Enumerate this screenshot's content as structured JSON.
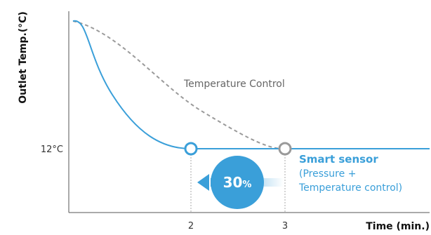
{
  "chart_data": {
    "type": "line",
    "ylabel": "Outlet Temp.(°C)",
    "xlabel": "Time (min.)",
    "x_ticks": [
      {
        "value": 2,
        "label": "2"
      },
      {
        "value": 3,
        "label": "3"
      }
    ],
    "y_ticks": [
      {
        "value": 12,
        "label": "12°C"
      }
    ],
    "xlim": [
      0,
      4.5
    ],
    "series": [
      {
        "name": "Temperature Control",
        "style": "dashed",
        "color": "#9a9a9a",
        "points": [
          [
            0,
            40
          ],
          [
            0.3,
            37
          ],
          [
            1,
            28
          ],
          [
            2,
            19
          ],
          [
            2.6,
            14
          ],
          [
            3,
            12
          ]
        ]
      },
      {
        "name": "Smart sensor",
        "style": "solid",
        "color": "#3a9fd9",
        "points": [
          [
            0,
            40
          ],
          [
            0.15,
            36
          ],
          [
            0.5,
            24
          ],
          [
            1,
            16
          ],
          [
            1.5,
            12.8
          ],
          [
            2,
            12
          ],
          [
            3,
            12
          ],
          [
            4.5,
            12
          ]
        ]
      }
    ],
    "markers": [
      {
        "x": 2,
        "y": 12,
        "color": "#3a9fd9"
      },
      {
        "x": 3,
        "y": 12,
        "color": "#9a9a9a"
      }
    ],
    "annotations": {
      "temperature_control": "Temperature Control",
      "smart_sensor_title": "Smart sensor",
      "smart_sensor_line1": "(Pressure +",
      "smart_sensor_line2": "Temperature control)",
      "reduction_value": "30",
      "reduction_unit": "%"
    },
    "grid": false,
    "colors": {
      "axis": "#555555",
      "smart": "#3a9fd9",
      "control": "#9a9a9a",
      "badge": "#3a9fd9"
    }
  }
}
